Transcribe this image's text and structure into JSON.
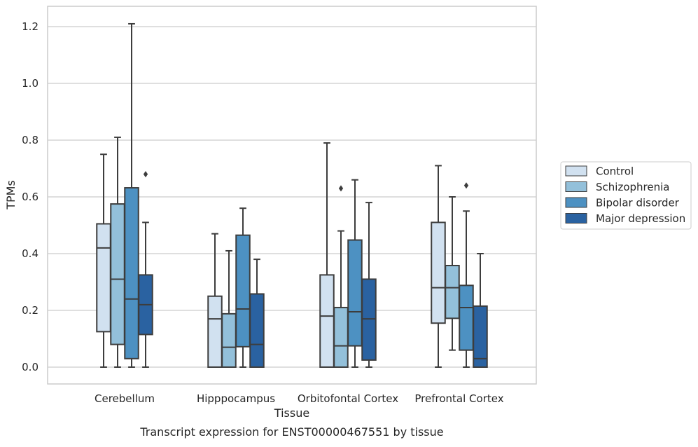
{
  "chart_data": {
    "type": "boxplot",
    "title": "Transcript expression for ENST00000467551 by tissue",
    "xlabel": "Tissue",
    "ylabel": "TPMs",
    "ylim": [
      -0.06,
      1.27
    ],
    "yticks": [
      0.0,
      0.2,
      0.4,
      0.6,
      0.8,
      1.0,
      1.2
    ],
    "ytick_labels": [
      "0.0",
      "0.2",
      "0.4",
      "0.6",
      "0.8",
      "1.0",
      "1.2"
    ],
    "grid": "horizontal",
    "legend_position": "right",
    "categories": [
      "Cerebellum",
      "Hipppocampus",
      "Orbitofontal Cortex",
      "Prefrontal Cortex"
    ],
    "series": [
      {
        "name": "Control",
        "color": "#d1e1f0",
        "boxes": [
          {
            "whislo": 0.0,
            "q1": 0.125,
            "med": 0.42,
            "q3": 0.505,
            "whishi": 0.75,
            "fliers": []
          },
          {
            "whislo": 0.0,
            "q1": 0.0,
            "med": 0.17,
            "q3": 0.25,
            "whishi": 0.47,
            "fliers": []
          },
          {
            "whislo": 0.0,
            "q1": 0.0,
            "med": 0.18,
            "q3": 0.325,
            "whishi": 0.79,
            "fliers": []
          },
          {
            "whislo": 0.0,
            "q1": 0.155,
            "med": 0.28,
            "q3": 0.51,
            "whishi": 0.71,
            "fliers": []
          }
        ]
      },
      {
        "name": "Schizophrenia",
        "color": "#93c0da",
        "boxes": [
          {
            "whislo": 0.0,
            "q1": 0.08,
            "med": 0.31,
            "q3": 0.575,
            "whishi": 0.81,
            "fliers": []
          },
          {
            "whislo": 0.0,
            "q1": 0.0,
            "med": 0.07,
            "q3": 0.188,
            "whishi": 0.41,
            "fliers": []
          },
          {
            "whislo": 0.0,
            "q1": 0.0,
            "med": 0.075,
            "q3": 0.21,
            "whishi": 0.48,
            "fliers": [
              0.63
            ]
          },
          {
            "whislo": 0.06,
            "q1": 0.172,
            "med": 0.28,
            "q3": 0.358,
            "whishi": 0.6,
            "fliers": []
          }
        ]
      },
      {
        "name": "Bipolar disorder",
        "color": "#4d91c2",
        "boxes": [
          {
            "whislo": 0.0,
            "q1": 0.03,
            "med": 0.24,
            "q3": 0.632,
            "whishi": 1.21,
            "fliers": []
          },
          {
            "whislo": 0.0,
            "q1": 0.072,
            "med": 0.205,
            "q3": 0.465,
            "whishi": 0.56,
            "fliers": []
          },
          {
            "whislo": 0.0,
            "q1": 0.075,
            "med": 0.195,
            "q3": 0.448,
            "whishi": 0.66,
            "fliers": []
          },
          {
            "whislo": 0.0,
            "q1": 0.06,
            "med": 0.21,
            "q3": 0.288,
            "whishi": 0.55,
            "fliers": [
              0.64
            ]
          }
        ]
      },
      {
        "name": "Major depression",
        "color": "#2a62a1",
        "boxes": [
          {
            "whislo": 0.0,
            "q1": 0.115,
            "med": 0.22,
            "q3": 0.325,
            "whishi": 0.51,
            "fliers": [
              0.68
            ]
          },
          {
            "whislo": 0.0,
            "q1": 0.0,
            "med": 0.08,
            "q3": 0.258,
            "whishi": 0.38,
            "fliers": []
          },
          {
            "whislo": 0.0,
            "q1": 0.025,
            "med": 0.17,
            "q3": 0.31,
            "whishi": 0.58,
            "fliers": []
          },
          {
            "whislo": 0.0,
            "q1": 0.0,
            "med": 0.03,
            "q3": 0.215,
            "whishi": 0.4,
            "fliers": []
          }
        ]
      }
    ]
  }
}
